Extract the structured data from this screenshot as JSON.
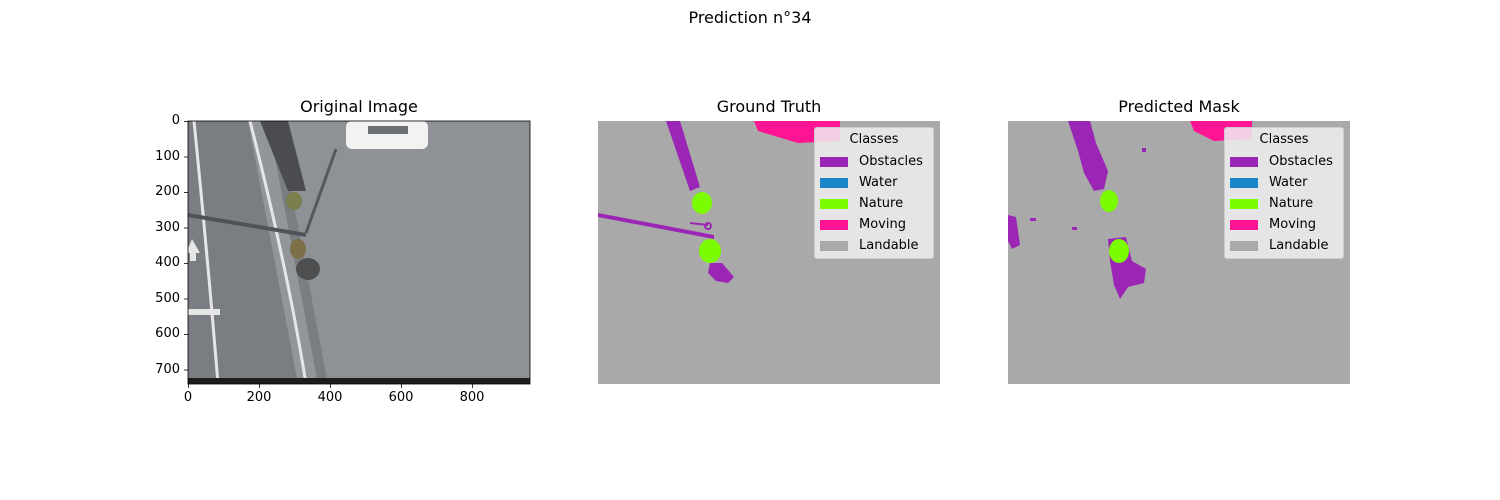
{
  "figure": {
    "suptitle": "Prediction n°34"
  },
  "panels": [
    {
      "title": "Original Image"
    },
    {
      "title": "Ground Truth"
    },
    {
      "title": "Predicted Mask"
    }
  ],
  "axes": {
    "y_ticks": [
      "0",
      "100",
      "200",
      "300",
      "400",
      "500",
      "600",
      "700"
    ],
    "x_ticks": [
      "0",
      "200",
      "400",
      "600",
      "800"
    ]
  },
  "legend": {
    "title": "Classes",
    "items": [
      {
        "label": "Obstacles",
        "color": "#9b26b6"
      },
      {
        "label": "Water",
        "color": "#1a85c9"
      },
      {
        "label": "Nature",
        "color": "#7cfc00"
      },
      {
        "label": "Moving",
        "color": "#ff1493"
      },
      {
        "label": "Landable",
        "color": "#a9a9a9"
      }
    ]
  },
  "colors": {
    "landable_background": "#a9a9a9",
    "asphalt": "#8c9094"
  }
}
